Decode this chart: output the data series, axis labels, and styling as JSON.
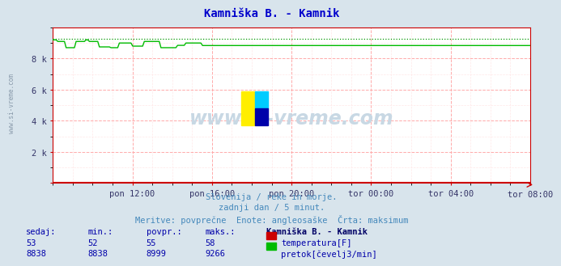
{
  "title": "Kamniška B. - Kamnik",
  "title_color": "#0000cc",
  "bg_color": "#d8e4ec",
  "plot_bg_color": "#ffffff",
  "grid_color_major": "#ffaaaa",
  "grid_color_minor": "#ffe8e8",
  "x_tick_labels": [
    "pon 12:00",
    "pon 16:00",
    "pon 20:00",
    "tor 00:00",
    "tor 04:00",
    "tor 08:00"
  ],
  "y_tick_labels": [
    "",
    "2 k",
    "4 k",
    "6 k",
    "8 k"
  ],
  "ylim": [
    0,
    10000
  ],
  "n_points": 288,
  "temp_value": 53,
  "temp_color": "#cc0000",
  "flow_base": 8838,
  "flow_avg": 8999,
  "flow_max": 9266,
  "flow_color": "#00bb00",
  "flow_dotted_color": "#009900",
  "watermark_text": "www.si-vreme.com",
  "watermark_color": "#c8d8e4",
  "subtitle1": "Slovenija / reke in morje.",
  "subtitle2": "zadnji dan / 5 minut.",
  "subtitle3": "Meritve: povprečne  Enote: angleosaške  Črta: maksimum",
  "subtitle_color": "#4488bb",
  "table_headers": [
    "sedaj:",
    "min.:",
    "povpr.:",
    "maks.:",
    "Kamniška B. - Kamnik"
  ],
  "table_color": "#0000aa",
  "row1": [
    53,
    52,
    55,
    58
  ],
  "row2": [
    8838,
    8838,
    8999,
    9266
  ],
  "legend_labels": [
    "temperatura[F]",
    "pretok[čevelj3/min]"
  ],
  "legend_colors": [
    "#cc0000",
    "#00bb00"
  ],
  "left_label": "www.si-vreme.com",
  "left_label_color": "#8899aa",
  "spine_color": "#cc0000"
}
